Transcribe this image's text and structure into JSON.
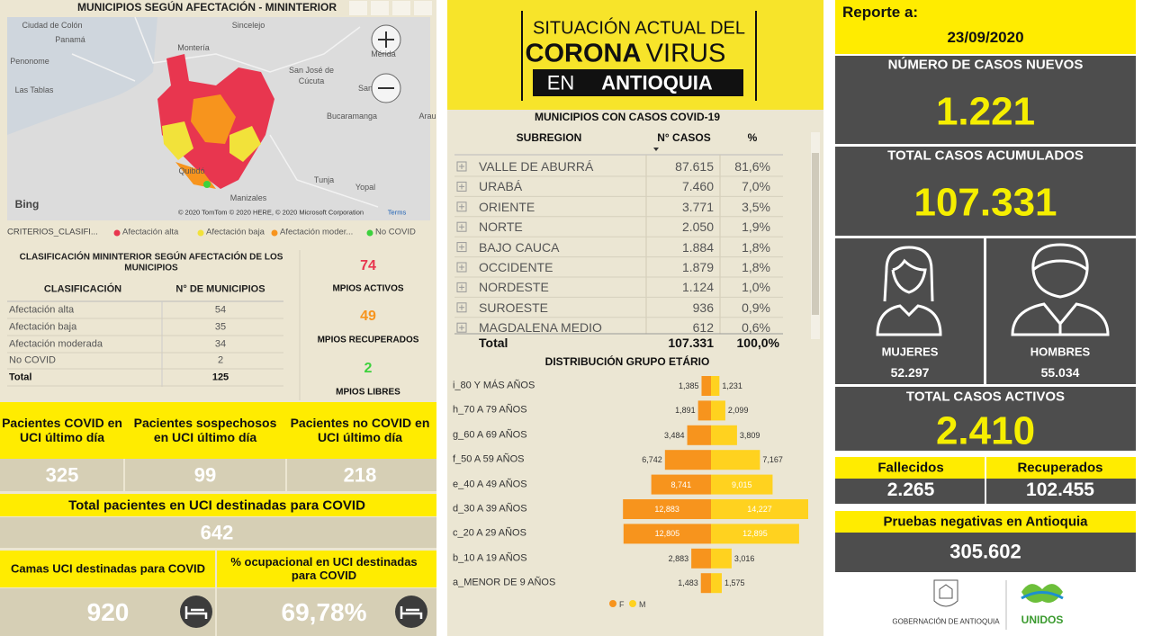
{
  "map": {
    "title": "MUNICIPIOS SEGÚN AFECTACIÓN - MININTERIOR",
    "places": [
      "Ciudad de Colón",
      "Panamá",
      "Penonome",
      "Las Tablas",
      "Montería",
      "Sincelejo",
      "Mérida",
      "San José de",
      "Cúcuta",
      "San",
      "Bucaramanga",
      "Arau",
      "Quibdó",
      "Tunja",
      "Yopal",
      "Manizales"
    ],
    "provider": "Bing",
    "copyright": "© 2020 TomTom © 2020 HERE, © 2020 Microsoft Corporation",
    "terms": "Terms",
    "legend_title": "CRITERIOS_CLASIFI...",
    "legend": [
      {
        "label": "Afectación alta",
        "color": "#e8364f"
      },
      {
        "label": "Afectación baja",
        "color": "#f2e23a"
      },
      {
        "label": "Afectación moder...",
        "color": "#f7941d"
      },
      {
        "label": "No COVID",
        "color": "#3dd13d"
      }
    ]
  },
  "classification": {
    "title": "CLASIFICACIÓN MININTERIOR SEGÚN AFECTACIÓN DE LOS MUNICIPIOS",
    "columns": [
      "CLASIFICACIÓN",
      "N° DE MUNICIPIOS"
    ],
    "rows": [
      [
        "Afectación alta",
        54
      ],
      [
        "Afectación baja",
        35
      ],
      [
        "Afectación moderada",
        34
      ],
      [
        "No COVID",
        2
      ],
      [
        "Total",
        125
      ]
    ]
  },
  "municipality_status": [
    {
      "value": 74,
      "label": "MPIOS ACTIVOS",
      "color": "#e8364f"
    },
    {
      "value": 49,
      "label": "MPIOS RECUPERADOS",
      "color": "#f7941d"
    },
    {
      "value": 2,
      "label": "MPIOS LIBRES",
      "color": "#3dd13d"
    }
  ],
  "icu": {
    "patients": [
      {
        "label": "Pacientes COVID en UCI último día",
        "value": 325
      },
      {
        "label": "Pacientes sospechosos en UCI último día",
        "value": 99
      },
      {
        "label": "Pacientes no COVID en UCI último día",
        "value": 218
      }
    ],
    "total": {
      "label": "Total pacientes en UCI destinadas para COVID",
      "value": 642
    },
    "beds": [
      {
        "label": "Camas UCI destinadas para COVID",
        "value": 920
      },
      {
        "label": "% ocupacional en UCI destinadas para COVID",
        "value": "69,78%"
      }
    ]
  },
  "header": {
    "line1": "SITUACIÓN ACTUAL DEL",
    "corona": "CORONA",
    "virus": "VIRUS",
    "en": "EN",
    "antioquia": "ANTIOQUIA"
  },
  "subregions": {
    "title": "MUNICIPIOS CON CASOS COVID-19",
    "columns": [
      "SUBREGION",
      "N° CASOS",
      "%"
    ],
    "rows": [
      [
        "VALLE DE ABURRÁ",
        "87.615",
        "81,6%"
      ],
      [
        "URABÁ",
        "7.460",
        "7,0%"
      ],
      [
        "ORIENTE",
        "3.771",
        "3,5%"
      ],
      [
        "NORTE",
        "2.050",
        "1,9%"
      ],
      [
        "BAJO CAUCA",
        "1.884",
        "1,8%"
      ],
      [
        "OCCIDENTE",
        "1.879",
        "1,8%"
      ],
      [
        "NORDESTE",
        "1.124",
        "1,0%"
      ],
      [
        "SUROESTE",
        "936",
        "0,9%"
      ],
      [
        "MAGDALENA MEDIO",
        "612",
        "0,6%"
      ]
    ],
    "total": [
      "Total",
      "107.331",
      "100,0%"
    ]
  },
  "chart_data": {
    "type": "bar",
    "title": "DISTRIBUCIÓN GRUPO ETÁRIO",
    "categories": [
      "i_80 Y MÁS AÑOS",
      "h_70 A 79 AÑOS",
      "g_60 A 69 AÑOS",
      "f_50 A 59 AÑOS",
      "e_40 A 49 AÑOS",
      "d_30 A 39 AÑOS",
      "c_20 A 29 AÑOS",
      "b_10 A 19 AÑOS",
      "a_MENOR DE 9 AÑOS"
    ],
    "series": [
      {
        "name": "F",
        "color": "#f7941d",
        "values": [
          1385,
          1891,
          3484,
          6742,
          8741,
          12883,
          12805,
          2883,
          1483
        ],
        "value_labels": [
          "1,385",
          "1,891",
          "3,484",
          "6,742",
          "8,741",
          "12,883",
          "12,805",
          "2,883",
          "1,483"
        ]
      },
      {
        "name": "M",
        "color": "#ffd21f",
        "values": [
          1231,
          2099,
          3809,
          7167,
          9015,
          14227,
          12895,
          3016,
          1575
        ],
        "value_labels": [
          "1,231",
          "2,099",
          "3,809",
          "7,167",
          "9,015",
          "14,227",
          "12,895",
          "3,016",
          "1,575"
        ]
      }
    ]
  },
  "report": {
    "label": "Reporte a:",
    "date": "23/09/2020"
  },
  "cases": {
    "new": {
      "label": "NÚMERO DE CASOS NUEVOS",
      "value": "1.221"
    },
    "total": {
      "label": "TOTAL CASOS ACUMULADOS",
      "value": "107.331"
    },
    "women": {
      "label": "MUJERES",
      "value": "52.297"
    },
    "men": {
      "label": "HOMBRES",
      "value": "55.034"
    },
    "active": {
      "label": "TOTAL CASOS ACTIVOS",
      "value": "2.410"
    },
    "deaths": {
      "label": "Fallecidos",
      "value": "2.265"
    },
    "recovered": {
      "label": "Recuperados",
      "value": "102.455"
    },
    "negative_tests": {
      "label": "Pruebas negativas en Antioquia",
      "value": "305.602"
    }
  },
  "logos": {
    "government": "GOBERNACIÓN DE ANTIOQUIA",
    "unidos": "UNIDOS"
  }
}
